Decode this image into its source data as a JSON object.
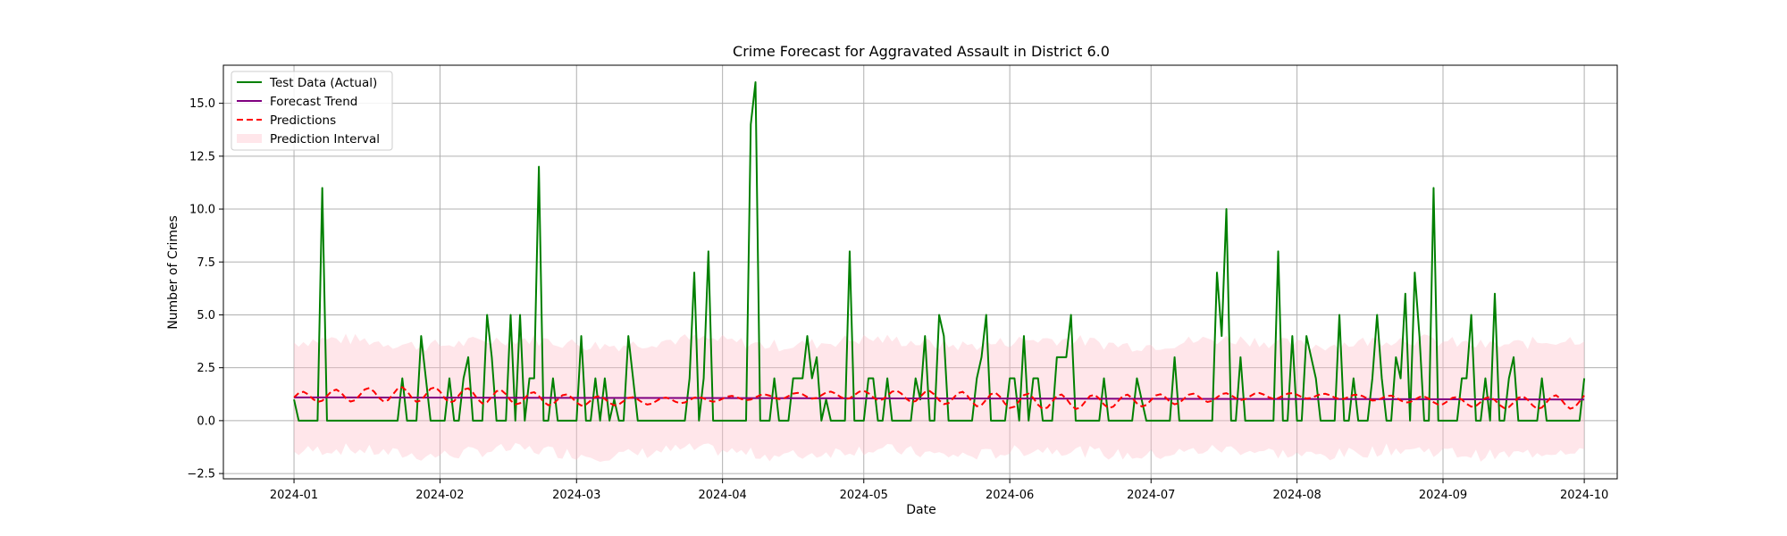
{
  "chart_data": {
    "type": "line",
    "title": "Crime Forecast for Aggravated Assault in District 6.0",
    "xlabel": "Date",
    "ylabel": "Number of Crimes",
    "x_start": "2024-01-01",
    "x_end": "2024-09-22",
    "xlim": [
      "2023-12-17",
      "2024-10-08"
    ],
    "ylim": [
      -2.75,
      16.8
    ],
    "x_ticks": [
      "2024-01",
      "2024-02",
      "2024-03",
      "2024-04",
      "2024-05",
      "2024-06",
      "2024-07",
      "2024-08",
      "2024-09",
      "2024-10"
    ],
    "y_ticks": [
      -2.5,
      0.0,
      2.5,
      5.0,
      7.5,
      10.0,
      12.5,
      15.0
    ],
    "y_tick_labels": [
      "−2.5",
      "0.0",
      "2.5",
      "5.0",
      "7.5",
      "10.0",
      "12.5",
      "15.0"
    ],
    "grid": true,
    "legend_position": "top-left",
    "series": [
      {
        "name": "Test Data (Actual)",
        "color": "#008000",
        "style": "solid",
        "values": [
          1,
          0,
          0,
          0,
          0,
          0,
          11,
          0,
          0,
          0,
          0,
          0,
          0,
          0,
          0,
          0,
          0,
          0,
          0,
          0,
          0,
          0,
          0,
          2,
          0,
          0,
          0,
          4,
          2,
          0,
          0,
          0,
          0,
          2,
          0,
          0,
          2,
          3,
          0,
          0,
          0,
          5,
          3,
          0,
          0,
          0,
          5,
          0,
          5,
          0,
          2,
          2,
          12,
          0,
          0,
          2,
          0,
          0,
          0,
          0,
          0,
          4,
          0,
          0,
          2,
          0,
          2,
          0,
          1,
          0,
          0,
          4,
          2,
          0,
          0,
          0,
          0,
          0,
          0,
          0,
          0,
          0,
          0,
          0,
          2,
          7,
          0,
          2,
          8,
          0,
          0,
          0,
          0,
          0,
          0,
          0,
          0,
          14,
          16,
          0,
          0,
          0,
          2,
          0,
          0,
          0,
          2,
          2,
          2,
          4,
          2,
          3,
          0,
          1,
          0,
          0,
          0,
          0,
          8,
          0,
          0,
          0,
          2,
          2,
          0,
          0,
          2,
          0,
          0,
          0,
          0,
          0,
          2,
          1,
          4,
          0,
          0,
          5,
          4,
          0,
          0,
          0,
          0,
          0,
          0,
          2,
          3,
          5,
          0,
          0,
          0,
          0,
          2,
          2,
          0,
          4,
          0,
          2,
          2,
          0,
          0,
          0,
          3,
          3,
          3,
          5,
          0,
          0,
          0,
          0,
          0,
          0,
          2,
          0,
          0,
          0,
          0,
          0,
          0,
          2,
          1,
          0,
          0,
          0,
          0,
          0,
          0,
          3,
          0,
          0,
          0,
          0,
          0,
          0,
          0,
          0,
          7,
          4,
          10,
          0,
          0,
          3,
          0,
          0,
          0,
          0,
          0,
          0,
          0,
          8,
          0,
          0,
          4,
          0,
          0,
          4,
          3,
          2,
          0,
          0,
          0,
          0,
          5,
          0,
          0,
          2,
          0,
          0,
          0,
          2,
          5,
          2,
          0,
          0,
          3,
          2,
          6,
          0,
          7,
          4,
          0,
          0,
          11,
          0,
          0,
          0,
          0,
          0,
          2,
          2,
          5,
          0,
          0,
          2,
          0,
          6,
          0,
          0,
          2,
          3,
          0,
          0,
          0,
          0,
          0,
          2,
          0,
          0,
          0,
          0,
          0,
          0,
          0,
          0,
          2
        ]
      },
      {
        "name": "Forecast Trend",
        "color": "#800080",
        "style": "solid",
        "values_start": 1.1,
        "values_end": 1.0
      },
      {
        "name": "Predictions",
        "color": "#ff0000",
        "style": "dashed",
        "mean": 1.1,
        "amplitude": 0.3
      },
      {
        "name": "Prediction Interval",
        "color": "#ffc0cb",
        "style": "band",
        "upper_mean": 3.7,
        "lower_mean": -1.5,
        "jitter": 0.3
      }
    ]
  }
}
